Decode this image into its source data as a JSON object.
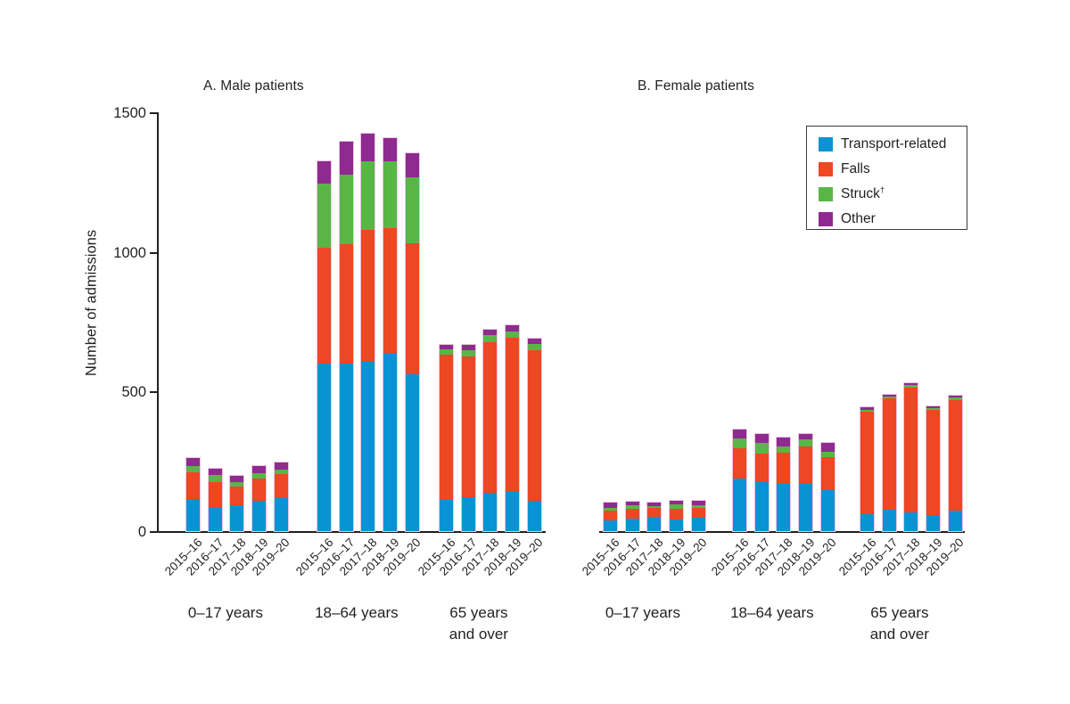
{
  "page": {
    "background": "#ffffff"
  },
  "chart_data": {
    "type": "bar",
    "stacked": true,
    "title": "",
    "ylabel": "Number of admissions",
    "ylim": [
      0,
      1500
    ],
    "yticks": [
      0,
      500,
      1000,
      1500
    ],
    "grid": false,
    "legend_position": "top-right",
    "axis_color": "#231f20",
    "years": [
      "2015–16",
      "2016–17",
      "2017–18",
      "2018–19",
      "2019–20"
    ],
    "series": [
      {
        "name": "Transport-related",
        "sup": "",
        "color": "#0993d4"
      },
      {
        "name": "Falls",
        "sup": "",
        "color": "#ee4723"
      },
      {
        "name": "Struck",
        "sup": "†",
        "color": "#58b647"
      },
      {
        "name": "Other",
        "sup": "",
        "color": "#8f2a90"
      }
    ],
    "panels": [
      {
        "title": "A. Male patients",
        "groups": [
          {
            "age_group": "0–17 years",
            "label_lines": [
              "0–17 years"
            ],
            "values_by_series": [
              [
                115,
                83,
                93,
                108,
                118
              ],
              [
                96,
                93,
                67,
                80,
                86
              ],
              [
                22,
                26,
                16,
                19,
                16
              ],
              [
                29,
                22,
                22,
                26,
                26
              ]
            ]
          },
          {
            "age_group": "18–64 years",
            "label_lines": [
              "18–64 years"
            ],
            "values_by_series": [
              [
                600,
                600,
                606,
                638,
                562
              ],
              [
                415,
                428,
                472,
                447,
                469
              ],
              [
                230,
                249,
                246,
                239,
                236
              ],
              [
                80,
                118,
                99,
                83,
                86
              ]
            ]
          },
          {
            "age_group": "65 years and over",
            "label_lines": [
              "65 years",
              "and over"
            ],
            "values_by_series": [
              [
                112,
                121,
                137,
                144,
                108
              ],
              [
                520,
                504,
                539,
                549,
                539
              ],
              [
                19,
                22,
                26,
                22,
                22
              ],
              [
                16,
                19,
                19,
                22,
                19
              ]
            ]
          }
        ]
      },
      {
        "title": "B. Female patients",
        "groups": [
          {
            "age_group": "0–17 years",
            "label_lines": [
              "0–17 years"
            ],
            "values_by_series": [
              [
                38,
                45,
                51,
                41,
                48
              ],
              [
                35,
                35,
                32,
                38,
                35
              ],
              [
                10,
                13,
                6,
                16,
                10
              ],
              [
                19,
                13,
                13,
                13,
                16
              ]
            ]
          },
          {
            "age_group": "18–64 years",
            "label_lines": [
              "18–64 years"
            ],
            "values_by_series": [
              [
                188,
                176,
                172,
                169,
                147
              ],
              [
                109,
                102,
                109,
                134,
                118
              ],
              [
                35,
                38,
                22,
                26,
                19
              ],
              [
                32,
                32,
                32,
                19,
                32
              ]
            ]
          },
          {
            "age_group": "65 years and over",
            "label_lines": [
              "65 years",
              "and over"
            ],
            "values_by_series": [
              [
                61,
                77,
                67,
                57,
                73
              ],
              [
                367,
                399,
                447,
                377,
                396
              ],
              [
                6,
                6,
                10,
                6,
                10
              ],
              [
                10,
                6,
                6,
                6,
                6
              ]
            ]
          }
        ]
      }
    ]
  }
}
